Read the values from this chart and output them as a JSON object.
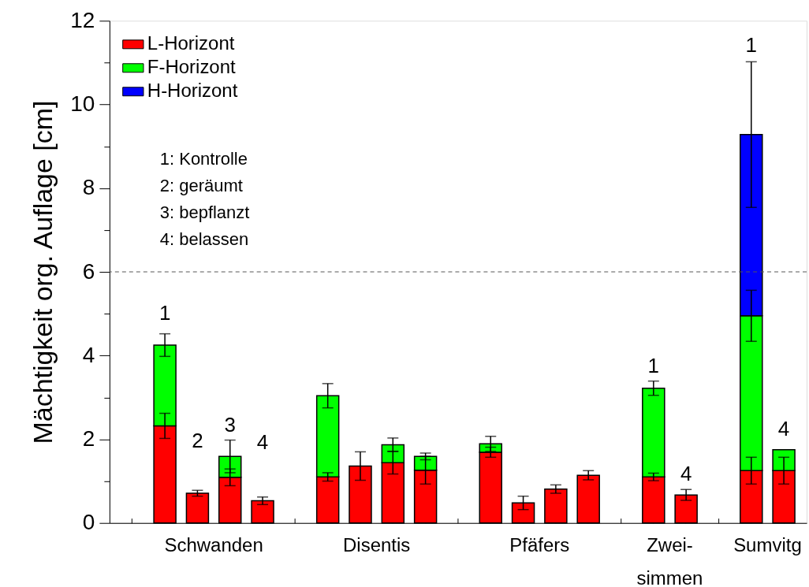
{
  "chart_data": {
    "type": "bar",
    "stacked": true,
    "ylabel": "Mächtigkeit org. Auflage [cm]",
    "categories": [
      null,
      null,
      null,
      null,
      null,
      null,
      null,
      null,
      null,
      null,
      null,
      null,
      null,
      null,
      null,
      null,
      null,
      null,
      null,
      null,
      null
    ],
    "tick_labels": "y",
    "ylim": [
      0,
      12
    ],
    "yticks": [
      0,
      {
        "value": 1,
        "label": null
      },
      2,
      {
        "value": 3,
        "label": null
      },
      4,
      {
        "value": 5,
        "label": null
      },
      6,
      {
        "value": 7,
        "label": null
      },
      8,
      {
        "value": 9,
        "label": null
      },
      10,
      {
        "value": 11,
        "label": null
      },
      12
    ],
    "series": [
      {
        "name": "L-Horizont",
        "color": "#ff0000",
        "values": [
          null,
          2.32,
          0.71,
          1.09,
          0.53,
          null,
          1.1,
          1.36,
          1.44,
          1.26,
          null,
          1.69,
          0.48,
          0.81,
          1.14,
          null,
          1.1,
          0.67,
          null,
          1.25,
          1.25
        ],
        "errors": [
          null,
          0.3,
          0.07,
          0.2,
          0.09,
          null,
          0.1,
          0.34,
          0.27,
          0.33,
          null,
          0.12,
          0.16,
          0.1,
          0.11,
          null,
          0.09,
          0.13,
          null,
          0.32,
          0.32
        ]
      },
      {
        "name": "F-Horizont",
        "color": "#00ff00",
        "values": [
          null,
          1.93,
          null,
          0.5,
          null,
          null,
          1.94,
          null,
          0.43,
          0.33,
          null,
          0.2,
          null,
          null,
          null,
          null,
          2.12,
          null,
          null,
          3.7,
          0.5
        ],
        "errors": [
          null,
          0.27,
          null,
          0.39,
          null,
          null,
          0.29,
          null,
          0.16,
          0.08,
          null,
          0.18,
          null,
          null,
          null,
          null,
          0.17,
          null,
          null,
          0.61,
          null
        ]
      },
      {
        "name": "H-Horizont",
        "color": "#0000ff",
        "values": [
          null,
          null,
          null,
          null,
          null,
          null,
          null,
          null,
          null,
          null,
          null,
          null,
          null,
          null,
          null,
          null,
          null,
          null,
          null,
          4.33,
          null
        ],
        "errors": [
          null,
          null,
          null,
          null,
          null,
          null,
          null,
          null,
          null,
          null,
          null,
          null,
          null,
          null,
          null,
          null,
          null,
          null,
          null,
          1.74,
          null
        ]
      }
    ],
    "ref_lines": [
      {
        "axis": "y",
        "value": 6,
        "color": "#555555",
        "line_style": "dashed"
      }
    ],
    "annotations": [
      "1: Kontrolle",
      "2: geräumt",
      "3: bepflanzt",
      "4: belassen",
      "1",
      "2",
      "3",
      "4",
      "1",
      "4",
      "1",
      "4",
      "Schwanden",
      "Disentis",
      "Pfäfers",
      "Zwei-\nsimmen",
      "Sumvitg"
    ],
    "legend": "top left",
    "grid": false
  }
}
